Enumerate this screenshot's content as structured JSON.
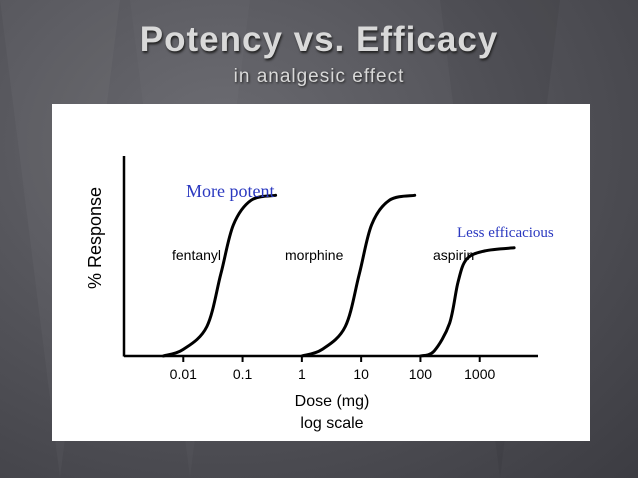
{
  "slide": {
    "title": "Potency vs. Efficacy",
    "subtitle": "in analgesic effect"
  },
  "colors": {
    "annotation": "#2b39c0",
    "curve": "#000000",
    "background": "#55555b"
  },
  "chart_data": {
    "type": "line",
    "xscale": "log",
    "xlim": [
      0.001,
      10000
    ],
    "ylim": [
      0,
      100
    ],
    "ylabel": "% Response",
    "xlabel_line1": "Dose (mg)",
    "xlabel_line2": "log scale",
    "xticks": [
      {
        "value": 0.01,
        "label": "0.01"
      },
      {
        "value": 0.1,
        "label": "0.1"
      },
      {
        "value": 1,
        "label": "1"
      },
      {
        "value": 10,
        "label": "10"
      },
      {
        "value": 100,
        "label": "100"
      },
      {
        "value": 1000,
        "label": "1000"
      }
    ],
    "series": [
      {
        "name": "fentanyl",
        "values": [
          [
            0.0046,
            0
          ],
          [
            0.01,
            4
          ],
          [
            0.025,
            18
          ],
          [
            0.043,
            50
          ],
          [
            0.07,
            80
          ],
          [
            0.14,
            95
          ],
          [
            0.36,
            98
          ]
        ]
      },
      {
        "name": "morphine",
        "values": [
          [
            1,
            0
          ],
          [
            2.2,
            4
          ],
          [
            5.4,
            18
          ],
          [
            9.3,
            50
          ],
          [
            15,
            80
          ],
          [
            30,
            95
          ],
          [
            80,
            98
          ]
        ]
      },
      {
        "name": "aspirin",
        "values": [
          [
            100,
            0
          ],
          [
            170,
            3
          ],
          [
            310,
            20
          ],
          [
            430,
            45
          ],
          [
            600,
            59
          ],
          [
            1200,
            64
          ],
          [
            3800,
            66
          ]
        ]
      }
    ],
    "annotations": [
      {
        "text": "More potent"
      },
      {
        "text": "Less efficacious"
      }
    ]
  }
}
